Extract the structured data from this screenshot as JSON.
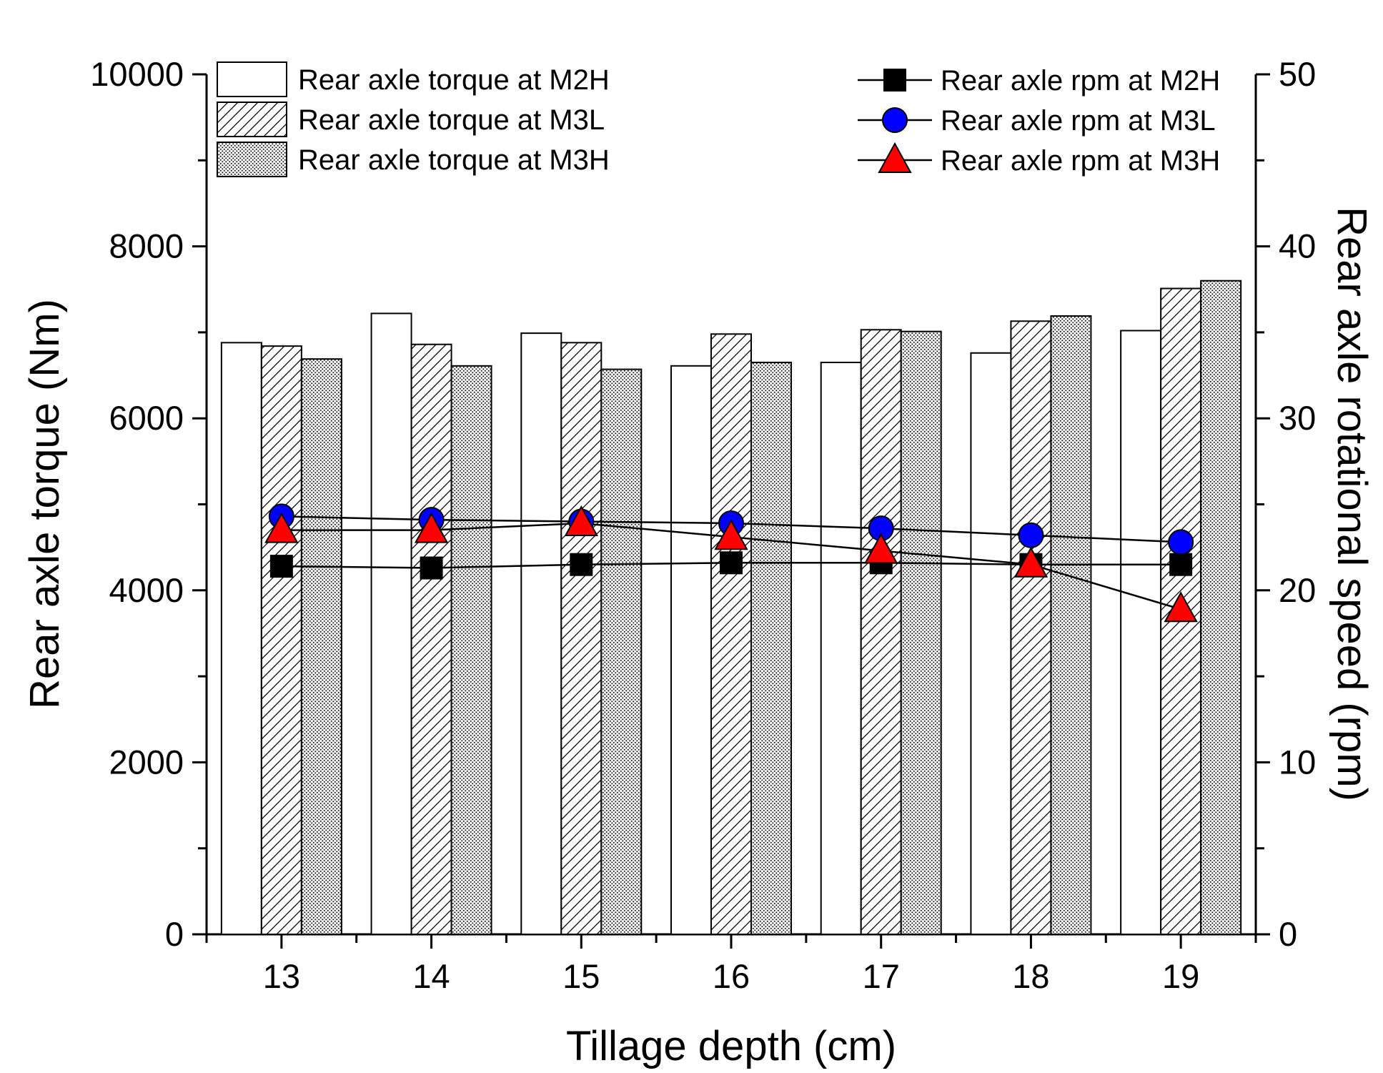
{
  "chart_data": {
    "type": "bar",
    "combo": "bar+line",
    "title": "",
    "xlabel": "Tillage depth (cm)",
    "ylabel": "Rear axle torque (Nm)",
    "y2label": "Rear axle rotational speed (rpm)",
    "categories": [
      "13",
      "14",
      "15",
      "16",
      "17",
      "18",
      "19"
    ],
    "ylim": [
      0,
      10000
    ],
    "y2lim": [
      0,
      50
    ],
    "y_ticks": [
      "0",
      "2000",
      "4000",
      "6000",
      "8000",
      "10000"
    ],
    "y2_ticks": [
      "0",
      "10",
      "20",
      "30",
      "40",
      "50"
    ],
    "bar_series": [
      {
        "name": "Rear axle torque at M2H",
        "pattern": "blank",
        "values": [
          6880,
          7220,
          6990,
          6610,
          6650,
          6760,
          7020
        ]
      },
      {
        "name": "Rear axle torque at M3L",
        "pattern": "hatched",
        "values": [
          6840,
          6860,
          6880,
          6980,
          7030,
          7130,
          7510
        ]
      },
      {
        "name": "Rear axle torque at M3H",
        "pattern": "dotted",
        "values": [
          6690,
          6610,
          6570,
          6650,
          7010,
          7190,
          7600
        ]
      }
    ],
    "line_series": [
      {
        "name": "Rear axle rpm at M2H",
        "marker": "square",
        "color": "#000000",
        "values": [
          21.4,
          21.3,
          21.5,
          21.6,
          21.6,
          21.5,
          21.5
        ]
      },
      {
        "name": "Rear axle rpm at M3L",
        "marker": "circle",
        "color": "#0000FF",
        "values": [
          24.3,
          24.1,
          24.0,
          23.9,
          23.6,
          23.2,
          22.8
        ]
      },
      {
        "name": "Rear axle rpm at M3H",
        "marker": "triangle",
        "color": "#FF0000",
        "values": [
          23.5,
          23.5,
          23.9,
          23.1,
          22.3,
          21.5,
          18.9
        ]
      }
    ],
    "legend_position": "top, bars top-left and lines top-right"
  }
}
